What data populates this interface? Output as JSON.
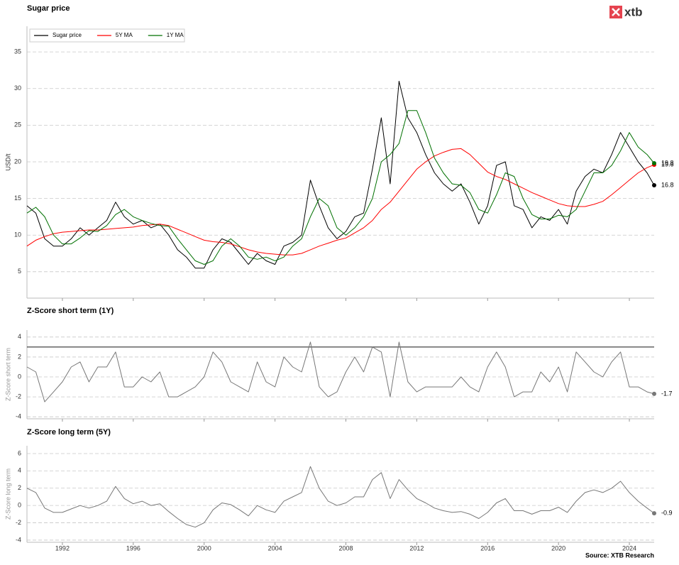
{
  "logo": "xtb",
  "source": "Source: XTB Research",
  "chart_data": [
    {
      "type": "line",
      "title": "Sugar price",
      "ylabel": "USD/t",
      "legend": "upper left",
      "grid": true,
      "xlim": [
        1990,
        2025.4
      ],
      "ylim": [
        1.4,
        38.5
      ],
      "yticks": [
        5,
        10,
        15,
        20,
        25,
        30,
        35
      ],
      "x": [
        1990,
        1990.5,
        1991,
        1991.5,
        1992,
        1992.5,
        1993,
        1993.5,
        1994,
        1994.5,
        1995,
        1995.5,
        1996,
        1996.5,
        1997,
        1997.5,
        1998,
        1998.5,
        1999,
        1999.5,
        2000,
        2000.5,
        2001,
        2001.5,
        2002,
        2002.5,
        2003,
        2003.5,
        2004,
        2004.5,
        2005,
        2005.5,
        2006,
        2006.5,
        2007,
        2007.5,
        2008,
        2008.5,
        2009,
        2009.5,
        2010,
        2010.5,
        2011,
        2011.5,
        2012,
        2012.5,
        2013,
        2013.5,
        2014,
        2014.5,
        2015,
        2015.5,
        2016,
        2016.5,
        2017,
        2017.5,
        2018,
        2018.5,
        2019,
        2019.5,
        2020,
        2020.5,
        2021,
        2021.5,
        2022,
        2022.5,
        2023,
        2023.5,
        2024,
        2024.5,
        2025,
        2025.4
      ],
      "series": [
        {
          "name": "Sugar price",
          "color": "#000000",
          "values": [
            14,
            13,
            9.5,
            8.5,
            8.5,
            9.5,
            11,
            10,
            11,
            12,
            14.5,
            12.5,
            11.5,
            12,
            11,
            11.5,
            10,
            8,
            7,
            5.5,
            5.5,
            8,
            9.5,
            9,
            7.5,
            6,
            7.5,
            6.5,
            6,
            8.5,
            9,
            10,
            17.5,
            14,
            11,
            9.5,
            10.5,
            12.5,
            13,
            19,
            26,
            17,
            31,
            26,
            24,
            21,
            18.5,
            17,
            16,
            17,
            14.5,
            11.5,
            14,
            19.5,
            20,
            14,
            13.5,
            11,
            12.5,
            12,
            13.5,
            11.5,
            16,
            18,
            19,
            18.5,
            21,
            24,
            22,
            20,
            18.5,
            16.8
          ]
        },
        {
          "name": "5Y MA",
          "color": "#ff0000",
          "values": [
            8.5,
            9.3,
            9.8,
            10.2,
            10.4,
            10.5,
            10.6,
            10.7,
            10.7,
            10.8,
            10.9,
            11.0,
            11.1,
            11.3,
            11.4,
            11.5,
            11.3,
            10.8,
            10.3,
            9.8,
            9.3,
            9.1,
            9.0,
            8.8,
            8.4,
            8.0,
            7.7,
            7.5,
            7.4,
            7.3,
            7.3,
            7.5,
            8.0,
            8.5,
            8.9,
            9.3,
            9.6,
            10.3,
            11.0,
            12.0,
            13.5,
            14.5,
            16.0,
            17.5,
            19.0,
            20.0,
            20.8,
            21.3,
            21.7,
            21.8,
            21.0,
            19.8,
            18.6,
            18.0,
            17.6,
            17.0,
            16.4,
            15.8,
            15.3,
            14.8,
            14.3,
            14.0,
            13.9,
            13.9,
            14.2,
            14.6,
            15.5,
            16.5,
            17.5,
            18.5,
            19.2,
            19.6
          ]
        },
        {
          "name": "1Y MA",
          "color": "#007000",
          "values": [
            13,
            13.8,
            12.5,
            10,
            8.8,
            8.8,
            9.6,
            10.6,
            10.5,
            11.3,
            12.8,
            13.5,
            12.5,
            12,
            11.6,
            11.3,
            11.2,
            9.5,
            8,
            6.5,
            6,
            6.5,
            8.5,
            9.5,
            8.5,
            7,
            6.7,
            7,
            6.5,
            7,
            8.5,
            9.5,
            12.5,
            15,
            14,
            11,
            10,
            11,
            12.5,
            15,
            20,
            21,
            22.5,
            27,
            27,
            24,
            20.5,
            18.5,
            17,
            16.8,
            15.8,
            13.5,
            13,
            15.5,
            18.5,
            18,
            15,
            12.8,
            12.2,
            12.2,
            12.7,
            12.5,
            13.5,
            16,
            18.5,
            18.5,
            19.5,
            21.5,
            24,
            22,
            21,
            19.8
          ]
        }
      ]
    },
    {
      "type": "line",
      "title": "Z-Score short term (1Y)",
      "ylabel": "Z-Score short term",
      "grid": true,
      "reference_line": 3,
      "xlim": [
        1990,
        2025.4
      ],
      "ylim": [
        -4.2,
        4.7
      ],
      "yticks": [
        -4,
        -2,
        0,
        2,
        4
      ],
      "x": [
        1990,
        1990.5,
        1991,
        1991.5,
        1992,
        1992.5,
        1993,
        1993.5,
        1994,
        1994.5,
        1995,
        1995.5,
        1996,
        1996.5,
        1997,
        1997.5,
        1998,
        1998.5,
        1999,
        1999.5,
        2000,
        2000.5,
        2001,
        2001.5,
        2002,
        2002.5,
        2003,
        2003.5,
        2004,
        2004.5,
        2005,
        2005.5,
        2006,
        2006.5,
        2007,
        2007.5,
        2008,
        2008.5,
        2009,
        2009.5,
        2010,
        2010.5,
        2011,
        2011.5,
        2012,
        2012.5,
        2013,
        2013.5,
        2014,
        2014.5,
        2015,
        2015.5,
        2016,
        2016.5,
        2017,
        2017.5,
        2018,
        2018.5,
        2019,
        2019.5,
        2020,
        2020.5,
        2021,
        2021.5,
        2022,
        2022.5,
        2023,
        2023.5,
        2024,
        2024.5,
        2025,
        2025.4
      ],
      "series": [
        {
          "color": "#777777",
          "values": [
            1,
            0.5,
            -2.5,
            -1.5,
            -0.5,
            1,
            1.5,
            -0.5,
            1,
            1,
            2.5,
            -1,
            -1,
            0,
            -0.5,
            0.5,
            -2,
            -2,
            -1.5,
            -1,
            0,
            2.5,
            1.5,
            -0.5,
            -1,
            -1.5,
            1.5,
            -0.5,
            -1,
            2,
            1,
            0.5,
            3.5,
            -1,
            -2,
            -1.5,
            0.5,
            2,
            0.5,
            3,
            2.5,
            -2,
            3.5,
            -0.5,
            -1.5,
            -1,
            -1,
            -1,
            -1,
            0,
            -1,
            -1.5,
            1,
            2.5,
            1,
            -2,
            -1.5,
            -1.5,
            0.5,
            -0.5,
            1,
            -1.5,
            2.5,
            1.5,
            0.5,
            0,
            1.5,
            2.5,
            -1,
            -1,
            -1.5,
            -1.7
          ]
        }
      ]
    },
    {
      "type": "line",
      "title": "Z-Score long term (5Y)",
      "ylabel": "Z-Score long term",
      "grid": true,
      "xlim": [
        1990,
        2025.4
      ],
      "ylim": [
        -4.25,
        6.9
      ],
      "yticks": [
        -4,
        -2,
        0,
        2,
        4,
        6
      ],
      "xticks": [
        1992,
        1996,
        2000,
        2004,
        2008,
        2012,
        2016,
        2020,
        2024
      ],
      "x": [
        1990,
        1990.5,
        1991,
        1991.5,
        1992,
        1992.5,
        1993,
        1993.5,
        1994,
        1994.5,
        1995,
        1995.5,
        1996,
        1996.5,
        1997,
        1997.5,
        1998,
        1998.5,
        1999,
        1999.5,
        2000,
        2000.5,
        2001,
        2001.5,
        2002,
        2002.5,
        2003,
        2003.5,
        2004,
        2004.5,
        2005,
        2005.5,
        2006,
        2006.5,
        2007,
        2007.5,
        2008,
        2008.5,
        2009,
        2009.5,
        2010,
        2010.5,
        2011,
        2011.5,
        2012,
        2012.5,
        2013,
        2013.5,
        2014,
        2014.5,
        2015,
        2015.5,
        2016,
        2016.5,
        2017,
        2017.5,
        2018,
        2018.5,
        2019,
        2019.5,
        2020,
        2020.5,
        2021,
        2021.5,
        2022,
        2022.5,
        2023,
        2023.5,
        2024,
        2024.5,
        2025,
        2025.4
      ],
      "series": [
        {
          "color": "#777777",
          "values": [
            2,
            1.5,
            -0.3,
            -0.8,
            -0.8,
            -0.4,
            0,
            -0.3,
            0,
            0.5,
            2.2,
            0.8,
            0.2,
            0.5,
            0,
            0.2,
            -0.7,
            -1.5,
            -2.2,
            -2.5,
            -2,
            -0.5,
            0.3,
            0.1,
            -0.5,
            -1.2,
            0,
            -0.5,
            -0.8,
            0.5,
            1,
            1.5,
            4.5,
            2,
            0.5,
            0,
            0.3,
            1,
            1,
            3,
            3.8,
            0.8,
            3,
            1.8,
            0.8,
            0.3,
            -0.3,
            -0.6,
            -0.8,
            -0.7,
            -1,
            -1.5,
            -0.8,
            0.3,
            0.8,
            -0.6,
            -0.6,
            -1,
            -0.6,
            -0.6,
            -0.2,
            -0.8,
            0.5,
            1.5,
            1.8,
            1.5,
            2,
            2.8,
            1.5,
            0.5,
            -0.3,
            -0.9
          ]
        }
      ]
    }
  ]
}
